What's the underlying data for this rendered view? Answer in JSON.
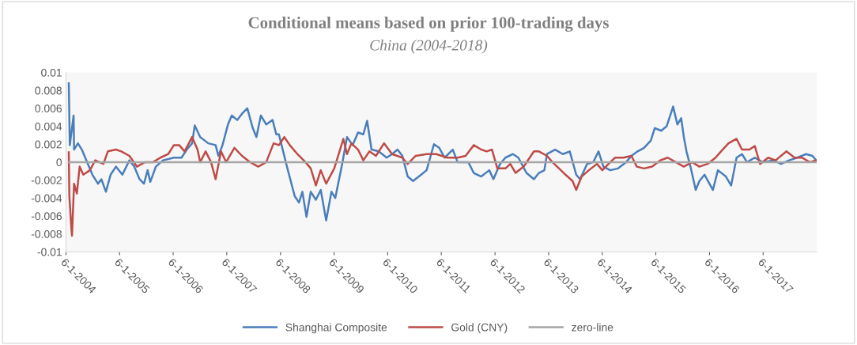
{
  "chart_data": {
    "type": "line",
    "title": "Conditional means based on prior 100-trading days",
    "subtitle": "China (2004-2018)",
    "xlim": [
      "2004-06-01",
      "2018-06-01"
    ],
    "xticks": [
      {
        "value": "2004-06-01",
        "label": "6-1-2004"
      },
      {
        "value": "2005-06-01",
        "label": "6-1-2005"
      },
      {
        "value": "2006-06-01",
        "label": "6-1-2006"
      },
      {
        "value": "2007-06-01",
        "label": "6-1-2007"
      },
      {
        "value": "2008-06-01",
        "label": "6-1-2008"
      },
      {
        "value": "2009-06-01",
        "label": "6-1-2009"
      },
      {
        "value": "2010-06-01",
        "label": "6-1-2010"
      },
      {
        "value": "2011-06-01",
        "label": "6-1-2011"
      },
      {
        "value": "2012-06-01",
        "label": "6-1-2012"
      },
      {
        "value": "2013-06-01",
        "label": "6-1-2013"
      },
      {
        "value": "2014-06-01",
        "label": "6-1-2014"
      },
      {
        "value": "2015-06-01",
        "label": "6-1-2015"
      },
      {
        "value": "2016-06-01",
        "label": "6-1-2016"
      },
      {
        "value": "2017-06-01",
        "label": "6-1-2017"
      }
    ],
    "ylim": [
      -0.01,
      0.01
    ],
    "yticks": [
      -0.01,
      -0.008,
      -0.006,
      -0.004,
      -0.002,
      0,
      0.002,
      0.004,
      0.006,
      0.008,
      0.01
    ],
    "grid": false,
    "legend": "bottom",
    "marker": "none",
    "line_style": "solid",
    "series": [
      {
        "name": "Shanghai Composite",
        "color": "#4a7ebb",
        "x": [
          "2004-06-20",
          "2004-06-27",
          "2004-07-23",
          "2004-07-26",
          "2004-08-21",
          "2004-09-17",
          "2004-10-23",
          "2004-11-28",
          "2005-01-05",
          "2005-01-28",
          "2005-02-28",
          "2005-04-01",
          "2005-05-07",
          "2005-06-20",
          "2005-08-07",
          "2005-09-09",
          "2005-10-15",
          "2005-11-14",
          "2005-12-09",
          "2005-12-27",
          "2006-02-03",
          "2006-03-24",
          "2006-06-06",
          "2006-07-28",
          "2006-09-02",
          "2006-10-08",
          "2006-10-26",
          "2006-12-02",
          "2007-01-26",
          "2007-03-17",
          "2007-04-05",
          "2007-05-03",
          "2007-06-09",
          "2007-07-05",
          "2007-08-11",
          "2007-09-13",
          "2007-10-19",
          "2007-11-25",
          "2007-12-20",
          "2008-01-19",
          "2008-02-25",
          "2008-04-08",
          "2008-05-03",
          "2008-05-21",
          "2008-07-15",
          "2008-09-06",
          "2008-10-05",
          "2008-10-28",
          "2008-11-25",
          "2008-12-24",
          "2009-01-28",
          "2009-03-02",
          "2009-04-08",
          "2009-05-14",
          "2009-06-09",
          "2009-07-26",
          "2009-08-28",
          "2009-10-05",
          "2009-11-11",
          "2009-12-17",
          "2010-01-12",
          "2010-02-11",
          "2010-04-01",
          "2010-05-25",
          "2010-07-01",
          "2010-08-07",
          "2010-09-09",
          "2010-10-15",
          "2010-11-21",
          "2011-01-15",
          "2011-02-21",
          "2011-04-12",
          "2011-05-18",
          "2011-06-24",
          "2011-08-18",
          "2011-09-20",
          "2011-12-02",
          "2012-01-08",
          "2012-02-28",
          "2012-04-23",
          "2012-05-21",
          "2012-07-05",
          "2012-08-11",
          "2012-10-01",
          "2012-11-07",
          "2013-01-01",
          "2013-02-21",
          "2013-03-27",
          "2013-05-03",
          "2013-05-21",
          "2013-07-15",
          "2013-09-06",
          "2013-10-23",
          "2013-12-06",
          "2014-01-01",
          "2014-02-18",
          "2014-04-01",
          "2014-05-07",
          "2014-06-09",
          "2014-07-26",
          "2014-09-17",
          "2014-11-11",
          "2014-12-17",
          "2015-01-28",
          "2015-03-13",
          "2015-04-28",
          "2015-05-25",
          "2015-07-08",
          "2015-08-14",
          "2015-09-27",
          "2015-10-26",
          "2015-11-21",
          "2015-12-09",
          "2015-12-27",
          "2016-01-23",
          "2016-02-28",
          "2016-03-24",
          "2016-04-28",
          "2016-06-24",
          "2016-07-28",
          "2016-09-20",
          "2016-10-26",
          "2016-12-02",
          "2017-01-08",
          "2017-02-11",
          "2017-04-05",
          "2017-05-28",
          "2017-08-11",
          "2017-10-01",
          "2017-11-25",
          "2018-01-19",
          "2018-03-20",
          "2018-05-03",
          "2018-05-28"
        ],
        "values": [
          0.0088,
          0.0019,
          0.0052,
          0.0014,
          0.0021,
          0.0014,
          0,
          -0.0014,
          -0.0024,
          -0.0019,
          -0.0033,
          -0.0014,
          -0.0005,
          -0.0014,
          0.0002,
          -0.0005,
          -0.0019,
          -0.0024,
          -0.0009,
          -0.0022,
          -0.0005,
          0.0002,
          0.0005,
          0.0005,
          0.0014,
          0.0021,
          0.0041,
          0.0028,
          0.0021,
          0.0019,
          0.0007,
          0.0019,
          0.0042,
          0.0052,
          0.0047,
          0.0054,
          0.006,
          0.0038,
          0.0028,
          0.0052,
          0.0042,
          0.0047,
          0.0031,
          0.0031,
          -0.0005,
          -0.0038,
          -0.0045,
          -0.0033,
          -0.0061,
          -0.0033,
          -0.0042,
          -0.0031,
          -0.0065,
          -0.0033,
          -0.004,
          -0.0002,
          0.0028,
          0.0019,
          0.0033,
          0.0031,
          0.0046,
          0.0014,
          0.0012,
          0.0005,
          0.0009,
          0.0014,
          0.0007,
          -0.0016,
          -0.0021,
          -0.0014,
          -0.0009,
          0.002,
          0.0016,
          0.0005,
          0.0014,
          0,
          0,
          -0.0012,
          -0.0016,
          -0.0009,
          -0.0019,
          -0.0002,
          0.0005,
          0.0009,
          0.0005,
          -0.0012,
          -0.0019,
          -0.0012,
          -0.0009,
          0.0009,
          0.0014,
          0.0009,
          0.0012,
          -0.0014,
          -0.0019,
          -0.0002,
          0,
          0.0012,
          -0.0005,
          -0.0009,
          -0.0007,
          0,
          0.0007,
          0.0012,
          0.0016,
          0.0024,
          0.0038,
          0.0035,
          0.004,
          0.0062,
          0.0042,
          0.0049,
          0.0028,
          0.0012,
          -0.0005,
          -0.0031,
          -0.0021,
          -0.0014,
          -0.0031,
          -0.0009,
          -0.0016,
          -0.0026,
          0.0005,
          0.0009,
          0,
          0.0005,
          0,
          0.0002,
          -0.0002,
          0.0002,
          0.0005,
          0.0009,
          0.0007,
          0.0002
        ]
      },
      {
        "name": "Gold (CNY)",
        "color": "#be4b48",
        "x": [
          "2004-06-20",
          "2004-06-24",
          "2004-07-08",
          "2004-07-12",
          "2004-07-26",
          "2004-08-14",
          "2004-09-02",
          "2004-09-27",
          "2004-11-11",
          "2004-12-17",
          "2005-02-11",
          "2005-03-13",
          "2005-05-07",
          "2005-06-13",
          "2005-08-07",
          "2005-09-27",
          "2005-11-21",
          "2006-01-15",
          "2006-03-06",
          "2006-04-28",
          "2006-06-06",
          "2006-07-12",
          "2006-08-18",
          "2006-10-08",
          "2006-11-14",
          "2006-12-02",
          "2007-01-08",
          "2007-02-14",
          "2007-03-17",
          "2007-04-23",
          "2007-05-28",
          "2007-07-23",
          "2007-09-13",
          "2007-11-07",
          "2008-01-01",
          "2008-02-25",
          "2008-04-15",
          "2008-05-21",
          "2008-06-27",
          "2008-08-03",
          "2008-09-24",
          "2008-11-18",
          "2008-12-24",
          "2009-01-28",
          "2009-03-02",
          "2009-04-08",
          "2009-06-02",
          "2009-07-08",
          "2009-08-03",
          "2009-08-28",
          "2009-09-27",
          "2009-11-11",
          "2009-12-17",
          "2010-01-28",
          "2010-03-13",
          "2010-05-07",
          "2010-07-01",
          "2010-09-09",
          "2010-10-15",
          "2010-12-09",
          "2011-02-21",
          "2011-04-28",
          "2011-07-12",
          "2011-09-20",
          "2011-11-14",
          "2012-01-08",
          "2012-02-28",
          "2012-04-05",
          "2012-05-11",
          "2012-06-17",
          "2012-08-11",
          "2012-09-13",
          "2012-10-19",
          "2012-12-13",
          "2013-02-21",
          "2013-03-27",
          "2013-05-21",
          "2013-06-27",
          "2013-08-11",
          "2013-09-24",
          "2013-11-11",
          "2013-12-06",
          "2014-01-12",
          "2014-03-02",
          "2014-04-26",
          "2014-06-02",
          "2014-07-26",
          "2014-08-28",
          "2014-10-23",
          "2014-12-17",
          "2015-01-23",
          "2015-03-13",
          "2015-05-07",
          "2015-07-01",
          "2015-08-21",
          "2015-10-15",
          "2015-12-09",
          "2016-02-03",
          "2016-03-24",
          "2016-05-18",
          "2016-07-12",
          "2016-08-18",
          "2016-10-08",
          "2016-12-02",
          "2017-01-08",
          "2017-02-28",
          "2017-04-05",
          "2017-05-11",
          "2017-07-05",
          "2017-08-25",
          "2017-11-07",
          "2018-01-01",
          "2018-02-21",
          "2018-04-15",
          "2018-05-28"
        ],
        "values": [
          0.0011,
          -0.0038,
          -0.0075,
          -0.0082,
          -0.0024,
          -0.0035,
          -0.0005,
          -0.0014,
          -0.0009,
          0.0002,
          -0.0002,
          0.0012,
          0.0014,
          0.0012,
          0.0007,
          -0.0005,
          0,
          0,
          0.0005,
          0.0009,
          0.0019,
          0.0019,
          0.0012,
          0.0028,
          0.0014,
          0,
          0.0012,
          0,
          -0.0019,
          0.0012,
          0,
          0.0016,
          0.0007,
          0,
          -0.0005,
          0,
          0.0021,
          0.0019,
          0.0028,
          0.0019,
          0.0009,
          0,
          -0.0007,
          -0.0026,
          -0.0009,
          -0.0024,
          -0.0007,
          0.0012,
          0.0026,
          0.0009,
          0.0021,
          0.0014,
          0.0002,
          0.0012,
          0.0007,
          0.0021,
          0.0009,
          0.0005,
          -0.0002,
          0.0007,
          0.0009,
          0.0009,
          0.0005,
          0.0005,
          0.0007,
          0.0019,
          0.0014,
          0.0012,
          0.0014,
          -0.0007,
          -0.0007,
          -0.0002,
          -0.0012,
          -0.0005,
          0.0012,
          0.0012,
          0.0007,
          0,
          -0.0007,
          -0.0014,
          -0.0021,
          -0.0031,
          -0.0016,
          -0.0009,
          -0.0002,
          -0.0009,
          0,
          0.0005,
          0.0005,
          0.0007,
          -0.0005,
          -0.0007,
          -0.0005,
          0.0002,
          0.0005,
          0,
          -0.0005,
          0,
          -0.0005,
          -0.0002,
          0.0005,
          0.0012,
          0.0021,
          0.0026,
          0.0014,
          0.0014,
          0.0018,
          -0.0002,
          0.0005,
          0.0002,
          0.0012,
          0.0005,
          0.0005,
          0,
          0.0002
        ]
      },
      {
        "name": "zero-line",
        "color": "#a6a6a6",
        "x": [
          "2004-06-20",
          "2018-05-28"
        ],
        "values": [
          0,
          0
        ]
      }
    ]
  }
}
